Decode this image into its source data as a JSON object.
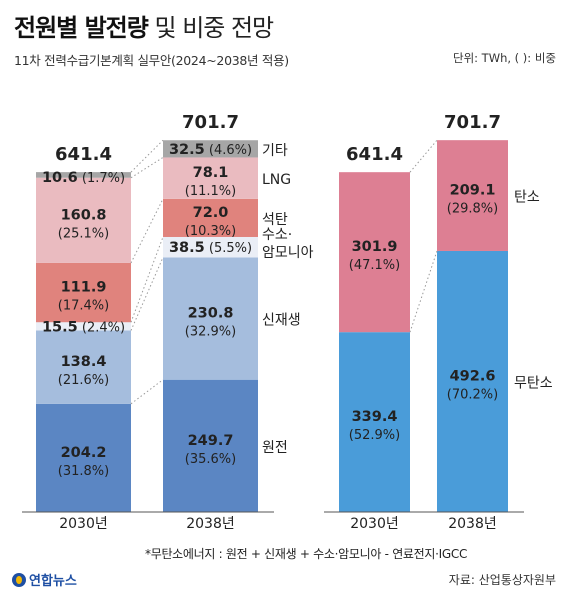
{
  "header": {
    "title_bold": "전원별 발전량",
    "title_light": "및 비중 전망",
    "subtitle": "11차 전력수급기본계획 실무안(2024~2038년 적용)",
    "unit": "단위: TWh, ( ): 비중"
  },
  "footer": {
    "footnote": "*무탄소에너지 : 원전 + 신재생 + 수소·암모니아 - 연료전지·IGCC",
    "source": "자료: 산업통상자원부",
    "logo_text": "연합뉴스"
  },
  "colors": {
    "nuclear": "#5b86c3",
    "renewable": "#a5bddd",
    "hydrogen": "#eaeef6",
    "coal": "#e0837d",
    "lng": "#eabbc0",
    "other": "#a6a6a6",
    "carbon": "#dd7f93",
    "carbon_free": "#4a9cd9"
  },
  "chart_data": [
    {
      "type": "bar",
      "stacked": true,
      "categories": [
        "2030년",
        "2038년"
      ],
      "totals": [
        "641.4",
        "701.7"
      ],
      "series": [
        {
          "name": "원전",
          "values": [
            204.2,
            249.7
          ],
          "shares": [
            "(31.8%)",
            "(35.6%)"
          ]
        },
        {
          "name": "신재생",
          "values": [
            138.4,
            230.8
          ],
          "shares": [
            "(21.6%)",
            "(32.9%)"
          ]
        },
        {
          "name": "수소·암모니아",
          "values": [
            15.5,
            38.5
          ],
          "shares": [
            "(2.4%)",
            "(5.5%)"
          ]
        },
        {
          "name": "석탄",
          "values": [
            111.9,
            72.0
          ],
          "shares": [
            "(17.4%)",
            "(10.3%)"
          ]
        },
        {
          "name": "LNG",
          "values": [
            160.8,
            78.1
          ],
          "shares": [
            "(25.1%)",
            "(11.1%)"
          ]
        },
        {
          "name": "기타",
          "values": [
            10.6,
            32.5
          ],
          "shares": [
            "(1.7%)",
            "(4.6%)"
          ]
        }
      ]
    },
    {
      "type": "bar",
      "stacked": true,
      "categories": [
        "2030년",
        "2038년"
      ],
      "totals": [
        "641.4",
        "701.7"
      ],
      "series": [
        {
          "name": "무탄소",
          "values": [
            339.4,
            492.6
          ],
          "shares": [
            "(52.9%)",
            "(70.2%)"
          ]
        },
        {
          "name": "탄소",
          "values": [
            301.9,
            209.1
          ],
          "shares": [
            "(47.1%)",
            "(29.8%)"
          ]
        }
      ]
    }
  ]
}
